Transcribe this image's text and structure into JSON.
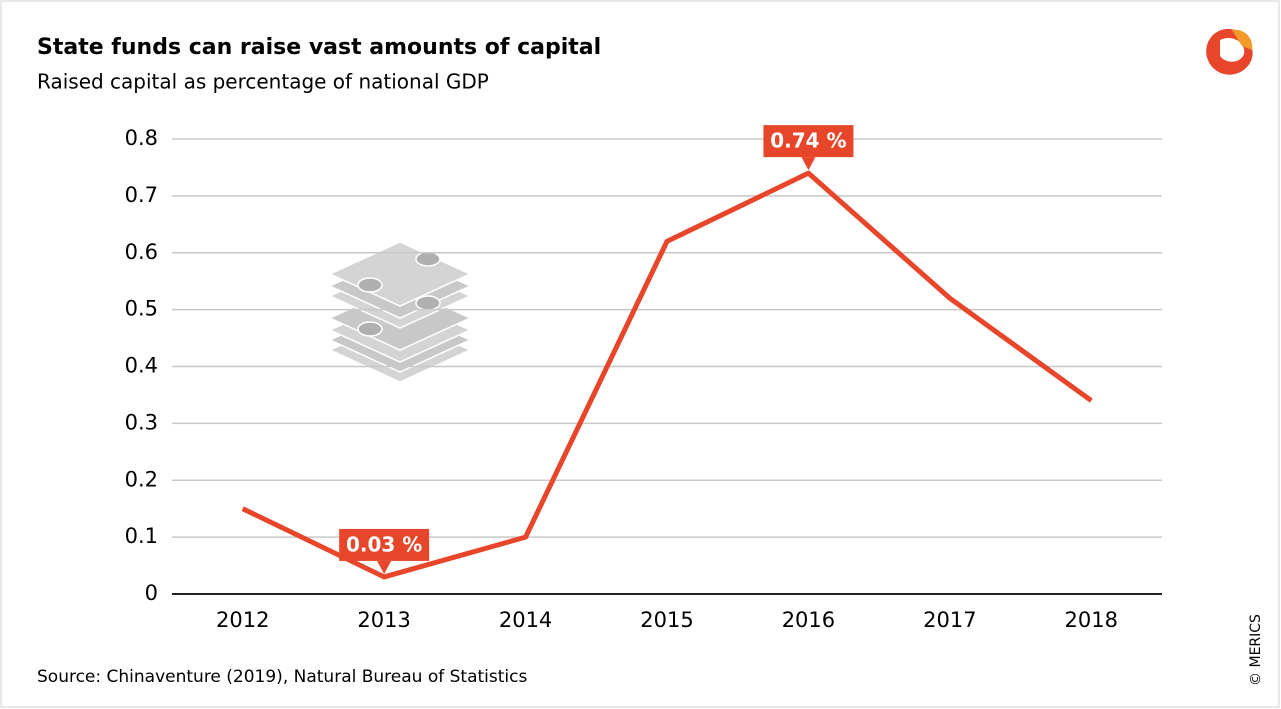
{
  "chart_data": {
    "type": "line",
    "title": "State funds can raise vast amounts of capital",
    "subtitle": "Raised capital as percentage of national GDP",
    "source": "Source: Chinaventure (2019), Natural Bureau of Statistics",
    "credit": "© MERICS",
    "categories": [
      "2012",
      "2013",
      "2014",
      "2015",
      "2016",
      "2017",
      "2018"
    ],
    "series": [
      {
        "name": "Raised capital",
        "color": "#e8462a",
        "values": [
          0.15,
          0.03,
          0.1,
          0.62,
          0.74,
          0.52,
          0.34
        ],
        "value_labels": [
          null,
          "0.03 %",
          null,
          null,
          "0.74 %",
          null,
          null
        ]
      }
    ],
    "ylim": [
      0,
      0.8
    ],
    "yticks": [
      0,
      0.1,
      0.2,
      0.3,
      0.4,
      0.5,
      0.6,
      0.7,
      0.8
    ],
    "grid": true
  }
}
